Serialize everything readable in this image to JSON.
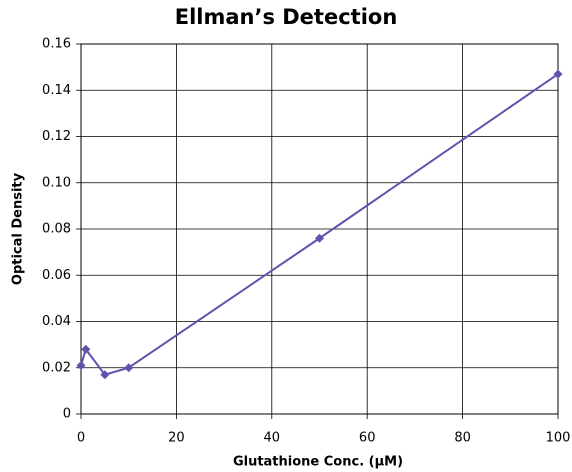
{
  "chart_data": {
    "type": "line",
    "title": "Ellman’s Detection",
    "xlabel": "Glutathione Conc. (µM)",
    "ylabel": "Optical Density",
    "x": [
      0,
      1,
      5,
      10,
      50,
      100
    ],
    "values": [
      0.021,
      0.028,
      0.017,
      0.02,
      0.076,
      0.147
    ],
    "color": "#5f53ad",
    "xlim": [
      0,
      100
    ],
    "xticks": [
      0,
      20,
      40,
      60,
      80,
      100
    ],
    "ylim": [
      0,
      0.16
    ],
    "yticks": [
      0,
      0.02,
      0.04,
      0.06,
      0.08,
      {
        "value": 0.1,
        "label": "0.10"
      },
      0.12,
      0.14,
      0.16
    ],
    "grid": true,
    "markers": true
  }
}
